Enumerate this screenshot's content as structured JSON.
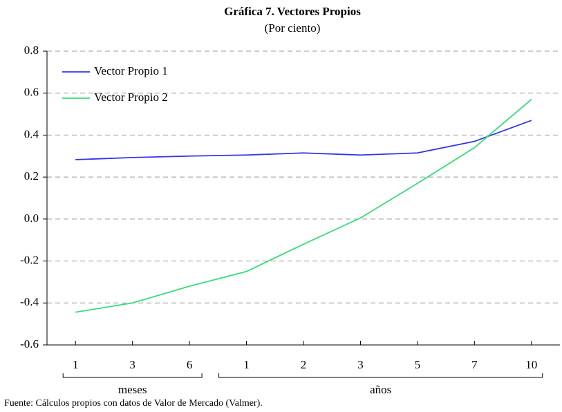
{
  "chart_data": {
    "type": "line",
    "title": "Gráfica 7. Vectores Propios",
    "subtitle": "(Por ciento)",
    "categories": [
      "1",
      "3",
      "6",
      "1",
      "2",
      "3",
      "5",
      "7",
      "10"
    ],
    "groups": [
      "meses",
      "años"
    ],
    "series": [
      {
        "name": "Vector Propio 1",
        "color": "#3333ee",
        "values": [
          0.283,
          0.293,
          0.3,
          0.305,
          0.315,
          0.305,
          0.315,
          0.37,
          0.47
        ]
      },
      {
        "name": "Vector Propio 2",
        "color": "#33dd77",
        "values": [
          -0.444,
          -0.4,
          -0.32,
          -0.25,
          -0.12,
          0.005,
          0.17,
          0.34,
          0.57
        ]
      }
    ],
    "ylim": [
      -0.6,
      0.8
    ],
    "yticks": [
      0.8,
      0.6,
      0.4,
      0.2,
      {
        "value": 0,
        "label": "0.0"
      },
      -0.2,
      -0.4,
      -0.6
    ],
    "grid": true,
    "legend": "upper-left",
    "source": "Fuente: Cálculos propios con datos de Valor de Mercado (Valmer)."
  }
}
